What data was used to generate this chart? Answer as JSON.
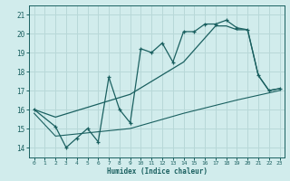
{
  "bg_color": "#d1ecec",
  "grid_color": "#b8d8d8",
  "line_color": "#1a6060",
  "xlabel": "Humidex (Indice chaleur)",
  "xlim": [
    -0.5,
    23.5
  ],
  "ylim": [
    13.5,
    21.5
  ],
  "yticks": [
    14,
    15,
    16,
    17,
    18,
    19,
    20,
    21
  ],
  "xticks": [
    0,
    1,
    2,
    3,
    4,
    5,
    6,
    7,
    8,
    9,
    10,
    11,
    12,
    13,
    14,
    15,
    16,
    17,
    18,
    19,
    20,
    21,
    22,
    23
  ],
  "s1_x": [
    0,
    2,
    3,
    4,
    5,
    6,
    7,
    8,
    9,
    10,
    11,
    12,
    13,
    14,
    15,
    16,
    17,
    18,
    19,
    20,
    21,
    22,
    23
  ],
  "s1_y": [
    16.0,
    15.1,
    14.0,
    14.5,
    15.0,
    14.3,
    17.7,
    16.0,
    15.3,
    19.2,
    19.0,
    19.5,
    18.5,
    20.1,
    20.1,
    20.5,
    20.5,
    20.7,
    20.3,
    20.2,
    17.8,
    17.0,
    17.1
  ],
  "s2_x": [
    0,
    2,
    9,
    14,
    17,
    18,
    19,
    20,
    21,
    22,
    23
  ],
  "s2_y": [
    16.0,
    15.6,
    16.8,
    18.5,
    20.4,
    20.4,
    20.2,
    20.2,
    17.8,
    17.0,
    17.1
  ],
  "s3_x": [
    0,
    2,
    9,
    14,
    19,
    23
  ],
  "s3_y": [
    15.8,
    14.6,
    15.0,
    15.8,
    16.5,
    17.0
  ]
}
